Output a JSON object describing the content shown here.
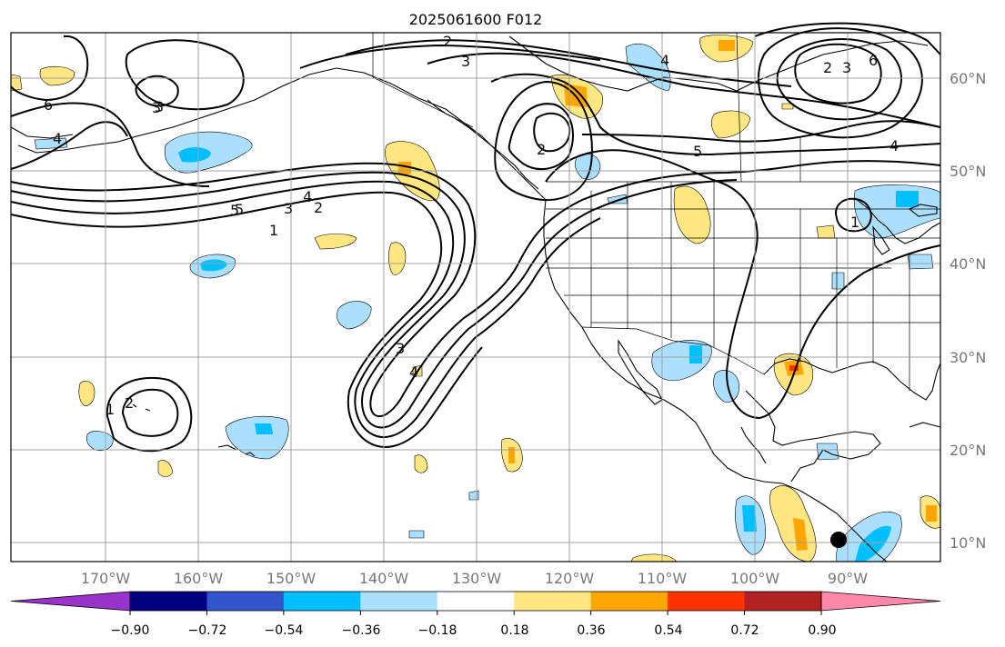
{
  "title": "2025061600 F012",
  "longitude_labels": [
    "170°W",
    "160°W",
    "150°W",
    "140°W",
    "130°W",
    "120°W",
    "110°W",
    "100°W",
    "90°W"
  ],
  "latitude_labels": [
    "60°N",
    "50°N",
    "40°N",
    "30°N",
    "20°N",
    "10°N"
  ],
  "colorbar": {
    "tick_labels": [
      "−0.90",
      "−0.72",
      "−0.54",
      "−0.36",
      "−0.18",
      "0.18",
      "0.36",
      "0.54",
      "0.72",
      "0.90"
    ],
    "colors": [
      "#9933cc",
      "#000080",
      "#3355cc",
      "#00bfff",
      "#aadfff",
      "#ffffff",
      "#ffe680",
      "#ffa500",
      "#ff3300",
      "#b22222",
      "#ff88aa"
    ],
    "extend": "both"
  },
  "contour_labels": [
    {
      "id": "c2-a",
      "text": "2"
    },
    {
      "id": "c3-a",
      "text": "3"
    },
    {
      "id": "c4-a",
      "text": "4"
    },
    {
      "id": "c3-b",
      "text": "3"
    },
    {
      "id": "c6-a",
      "text": "6"
    },
    {
      "id": "c4-b",
      "text": "4"
    },
    {
      "id": "c3-c",
      "text": "3"
    },
    {
      "id": "c5-a",
      "text": "5"
    },
    {
      "id": "c3-d",
      "text": "3"
    },
    {
      "id": "c4-c",
      "text": "4"
    },
    {
      "id": "c2-b",
      "text": "2"
    },
    {
      "id": "c1-a",
      "text": "1"
    },
    {
      "id": "c2-c",
      "text": "2"
    },
    {
      "id": "c5-b",
      "text": "5"
    },
    {
      "id": "c2-d",
      "text": "2"
    },
    {
      "id": "c3-e",
      "text": "3"
    },
    {
      "id": "c6-b",
      "text": "6"
    },
    {
      "id": "c4-d",
      "text": "4"
    },
    {
      "id": "c5-c",
      "text": "5"
    },
    {
      "id": "c3-f",
      "text": "3"
    },
    {
      "id": "c4-e",
      "text": "4"
    },
    {
      "id": "c1-b",
      "text": "1"
    },
    {
      "id": "c2-e",
      "text": "2"
    },
    {
      "id": "c1-c",
      "text": "1"
    }
  ],
  "colors": {
    "grid": "#a0a0a0",
    "axis_label": "#777777",
    "contour": "#000000",
    "coast": "#000000"
  }
}
